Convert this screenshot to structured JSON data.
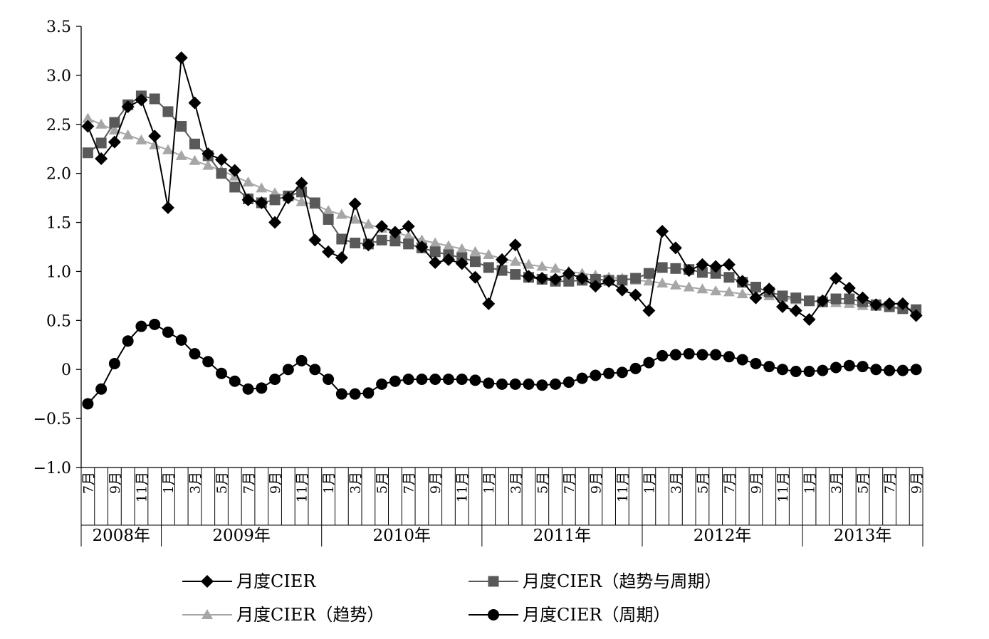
{
  "chart_data": {
    "type": "line",
    "title": "",
    "xlabel": "",
    "ylabel": "",
    "ylim": [
      -1.0,
      3.5
    ],
    "yticks": [
      "3.5",
      "3.0",
      "2.5",
      "2.0",
      "1.5",
      "1.0",
      "0.5",
      "0",
      "−0.5",
      "−1.0"
    ],
    "ytick_values": [
      3.5,
      3.0,
      2.5,
      2.0,
      1.5,
      1.0,
      0.5,
      0,
      -0.5,
      -1.0
    ],
    "x": [
      "2008-07",
      "2008-08",
      "2008-09",
      "2008-10",
      "2008-11",
      "2008-12",
      "2009-01",
      "2009-02",
      "2009-03",
      "2009-04",
      "2009-05",
      "2009-06",
      "2009-07",
      "2009-08",
      "2009-09",
      "2009-10",
      "2009-11",
      "2009-12",
      "2010-01",
      "2010-02",
      "2010-03",
      "2010-04",
      "2010-05",
      "2010-06",
      "2010-07",
      "2010-08",
      "2010-09",
      "2010-10",
      "2010-11",
      "2010-12",
      "2011-01",
      "2011-02",
      "2011-03",
      "2011-04",
      "2011-05",
      "2011-06",
      "2011-07",
      "2011-08",
      "2011-09",
      "2011-10",
      "2011-11",
      "2011-12",
      "2012-01",
      "2012-02",
      "2012-03",
      "2012-04",
      "2012-05",
      "2012-06",
      "2012-07",
      "2012-08",
      "2012-09",
      "2012-10",
      "2012-11",
      "2012-12",
      "2013-01",
      "2013-02",
      "2013-03",
      "2013-04",
      "2013-05",
      "2013-06",
      "2013-07",
      "2013-08",
      "2013-09"
    ],
    "month_labels": [
      {
        "index": 0,
        "text": "7月"
      },
      {
        "index": 2,
        "text": "9月"
      },
      {
        "index": 4,
        "text": "11月"
      },
      {
        "index": 6,
        "text": "1月"
      },
      {
        "index": 8,
        "text": "3月"
      },
      {
        "index": 10,
        "text": "5月"
      },
      {
        "index": 12,
        "text": "7月"
      },
      {
        "index": 14,
        "text": "9月"
      },
      {
        "index": 16,
        "text": "11月"
      },
      {
        "index": 18,
        "text": "1月"
      },
      {
        "index": 20,
        "text": "3月"
      },
      {
        "index": 22,
        "text": "5月"
      },
      {
        "index": 24,
        "text": "7月"
      },
      {
        "index": 26,
        "text": "9月"
      },
      {
        "index": 28,
        "text": "11月"
      },
      {
        "index": 30,
        "text": "1月"
      },
      {
        "index": 32,
        "text": "3月"
      },
      {
        "index": 34,
        "text": "5月"
      },
      {
        "index": 36,
        "text": "7月"
      },
      {
        "index": 38,
        "text": "9月"
      },
      {
        "index": 40,
        "text": "11月"
      },
      {
        "index": 42,
        "text": "1月"
      },
      {
        "index": 44,
        "text": "3月"
      },
      {
        "index": 46,
        "text": "5月"
      },
      {
        "index": 48,
        "text": "7月"
      },
      {
        "index": 50,
        "text": "9月"
      },
      {
        "index": 52,
        "text": "11月"
      },
      {
        "index": 54,
        "text": "1月"
      },
      {
        "index": 56,
        "text": "3月"
      },
      {
        "index": 58,
        "text": "5月"
      },
      {
        "index": 60,
        "text": "7月"
      },
      {
        "index": 62,
        "text": "9月"
      }
    ],
    "years": [
      {
        "label": "2008年",
        "start": 0,
        "end": 5
      },
      {
        "label": "2009年",
        "start": 6,
        "end": 17
      },
      {
        "label": "2010年",
        "start": 18,
        "end": 29
      },
      {
        "label": "2011年",
        "start": 30,
        "end": 41
      },
      {
        "label": "2012年",
        "start": 42,
        "end": 53
      },
      {
        "label": "2013年",
        "start": 54,
        "end": 62
      }
    ],
    "series": [
      {
        "name": "月度CIER",
        "marker": "diamond",
        "color": "#000000",
        "values": [
          2.48,
          2.15,
          2.32,
          2.68,
          2.75,
          2.38,
          1.65,
          3.18,
          2.72,
          2.2,
          2.14,
          2.03,
          1.73,
          1.7,
          1.5,
          1.75,
          1.9,
          1.32,
          1.2,
          1.14,
          1.69,
          1.27,
          1.46,
          1.4,
          1.46,
          1.25,
          1.09,
          1.12,
          1.08,
          0.94,
          0.67,
          1.12,
          1.27,
          0.95,
          0.93,
          0.92,
          0.98,
          0.93,
          0.85,
          0.9,
          0.81,
          0.76,
          0.6,
          1.41,
          1.24,
          1.01,
          1.07,
          1.05,
          1.07,
          0.9,
          0.73,
          0.82,
          0.64,
          0.6,
          0.51,
          0.7,
          0.93,
          0.83,
          0.73,
          0.66,
          0.67,
          0.67,
          0.55
        ]
      },
      {
        "name": "月度CIER（趋势与周期）",
        "marker": "square",
        "color": "#595959",
        "values": [
          2.21,
          2.31,
          2.52,
          2.7,
          2.79,
          2.76,
          2.63,
          2.48,
          2.3,
          2.18,
          2.0,
          1.86,
          1.74,
          1.7,
          1.73,
          1.77,
          1.81,
          1.7,
          1.53,
          1.33,
          1.29,
          1.28,
          1.32,
          1.31,
          1.28,
          1.24,
          1.2,
          1.17,
          1.14,
          1.1,
          1.04,
          1.01,
          0.97,
          0.94,
          0.92,
          0.9,
          0.9,
          0.91,
          0.92,
          0.91,
          0.91,
          0.93,
          0.98,
          1.04,
          1.03,
          1.02,
          0.99,
          0.98,
          0.94,
          0.89,
          0.84,
          0.79,
          0.75,
          0.73,
          0.7,
          0.69,
          0.72,
          0.72,
          0.69,
          0.66,
          0.64,
          0.62,
          0.61
        ]
      },
      {
        "name": "月度CIER（趋势）",
        "marker": "triangle",
        "color": "#a6a6a6",
        "values": [
          2.56,
          2.5,
          2.44,
          2.39,
          2.34,
          2.29,
          2.24,
          2.18,
          2.13,
          2.08,
          2.03,
          1.97,
          1.91,
          1.85,
          1.8,
          1.76,
          1.71,
          1.68,
          1.62,
          1.58,
          1.53,
          1.48,
          1.44,
          1.4,
          1.36,
          1.32,
          1.29,
          1.26,
          1.23,
          1.2,
          1.17,
          1.13,
          1.1,
          1.07,
          1.05,
          1.03,
          1.0,
          0.98,
          0.96,
          0.94,
          0.93,
          0.91,
          0.9,
          0.88,
          0.86,
          0.84,
          0.82,
          0.8,
          0.79,
          0.77,
          0.76,
          0.75,
          0.73,
          0.71,
          0.7,
          0.69,
          0.68,
          0.67,
          0.65,
          0.64,
          0.63,
          0.62,
          0.6
        ]
      },
      {
        "name": "月度CIER（周期）",
        "marker": "circle",
        "color": "#000000",
        "values": [
          -0.35,
          -0.2,
          0.06,
          0.29,
          0.44,
          0.46,
          0.38,
          0.3,
          0.16,
          0.08,
          -0.04,
          -0.12,
          -0.2,
          -0.19,
          -0.1,
          0.0,
          0.09,
          0.0,
          -0.1,
          -0.25,
          -0.25,
          -0.24,
          -0.15,
          -0.12,
          -0.1,
          -0.1,
          -0.1,
          -0.1,
          -0.1,
          -0.11,
          -0.14,
          -0.15,
          -0.15,
          -0.15,
          -0.16,
          -0.15,
          -0.13,
          -0.09,
          -0.06,
          -0.04,
          -0.03,
          0.01,
          0.07,
          0.14,
          0.15,
          0.16,
          0.15,
          0.15,
          0.13,
          0.1,
          0.06,
          0.03,
          0.0,
          -0.02,
          -0.02,
          -0.01,
          0.02,
          0.04,
          0.03,
          0.0,
          -0.01,
          -0.01,
          0.0
        ]
      }
    ],
    "legend_placement": "bottom",
    "grid": false
  }
}
